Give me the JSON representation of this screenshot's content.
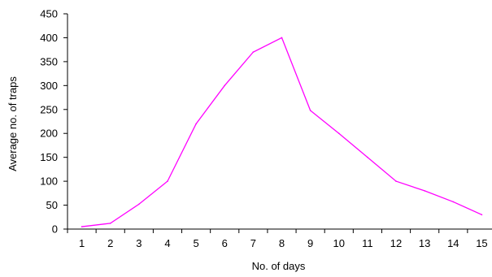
{
  "chart_data": {
    "type": "line",
    "title": "",
    "xlabel": "No. of days",
    "ylabel": "Average no. of traps",
    "categories": [
      "1",
      "2",
      "3",
      "4",
      "5",
      "6",
      "7",
      "8",
      "9",
      "10",
      "11",
      "12",
      "13",
      "14",
      "15"
    ],
    "series": [
      {
        "values": [
          5,
          12,
          52,
          100,
          220,
          300,
          370,
          400,
          248,
          200,
          150,
          100,
          80,
          57,
          30
        ]
      }
    ],
    "ylim": [
      0,
      450
    ],
    "yticks": [
      "0",
      "50",
      "100",
      "150",
      "200",
      "250",
      "300",
      "350",
      "400",
      "450"
    ],
    "grid": false,
    "legend": "none",
    "line_color": "#ff00ff"
  }
}
